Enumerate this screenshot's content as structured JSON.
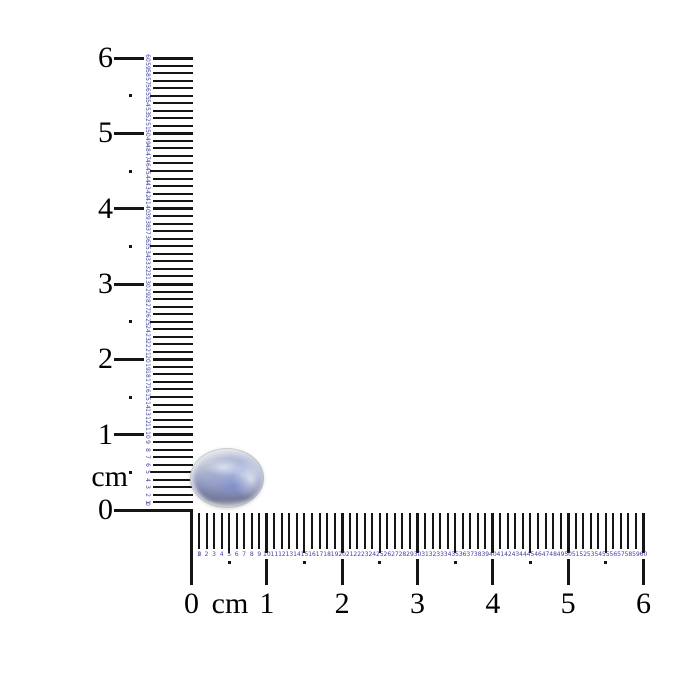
{
  "colors": {
    "background": "#ffffff",
    "tick": "#151515",
    "mm_number": "#4343a5",
    "cm_label": "#000000",
    "stone_base": "#a9b0cc",
    "stone_blue_sheen": "#96a0c6",
    "stone_dark_band": "#8289a8",
    "stone_rim": "#d9d7d3"
  },
  "vertical_ruler": {
    "unit_label": "cm",
    "cm_labels": [
      "0",
      "1",
      "2",
      "3",
      "4",
      "5",
      "6"
    ],
    "mm_labels": [
      0,
      1,
      2,
      3,
      4,
      5,
      6,
      7,
      8,
      9,
      10,
      11,
      12,
      13,
      14,
      15,
      16,
      17,
      18,
      19,
      20,
      21,
      22,
      23,
      24,
      25,
      26,
      27,
      28,
      29,
      30,
      31,
      32,
      33,
      34,
      35,
      36,
      37,
      38,
      39,
      40,
      41,
      42,
      43,
      44,
      45,
      46,
      47,
      48,
      49,
      50,
      51,
      52,
      53,
      54,
      55,
      56,
      57,
      58,
      59,
      60
    ]
  },
  "horizontal_ruler": {
    "unit_label": "cm",
    "cm_labels": [
      "0",
      "1",
      "2",
      "3",
      "4",
      "5",
      "6"
    ],
    "mm_labels": [
      0,
      1,
      2,
      3,
      4,
      5,
      6,
      7,
      8,
      9,
      10,
      11,
      12,
      13,
      14,
      15,
      16,
      17,
      18,
      19,
      20,
      21,
      22,
      23,
      24,
      25,
      26,
      27,
      28,
      29,
      30,
      31,
      32,
      33,
      34,
      35,
      36,
      37,
      38,
      39,
      40,
      41,
      42,
      43,
      44,
      45,
      46,
      47,
      48,
      49,
      50,
      51,
      52,
      53,
      54,
      55,
      56,
      57,
      58,
      59,
      60
    ]
  },
  "object": {
    "name": "oval moonstone cabochon",
    "approx_width_mm": 9.5,
    "approx_height_mm": 8
  }
}
